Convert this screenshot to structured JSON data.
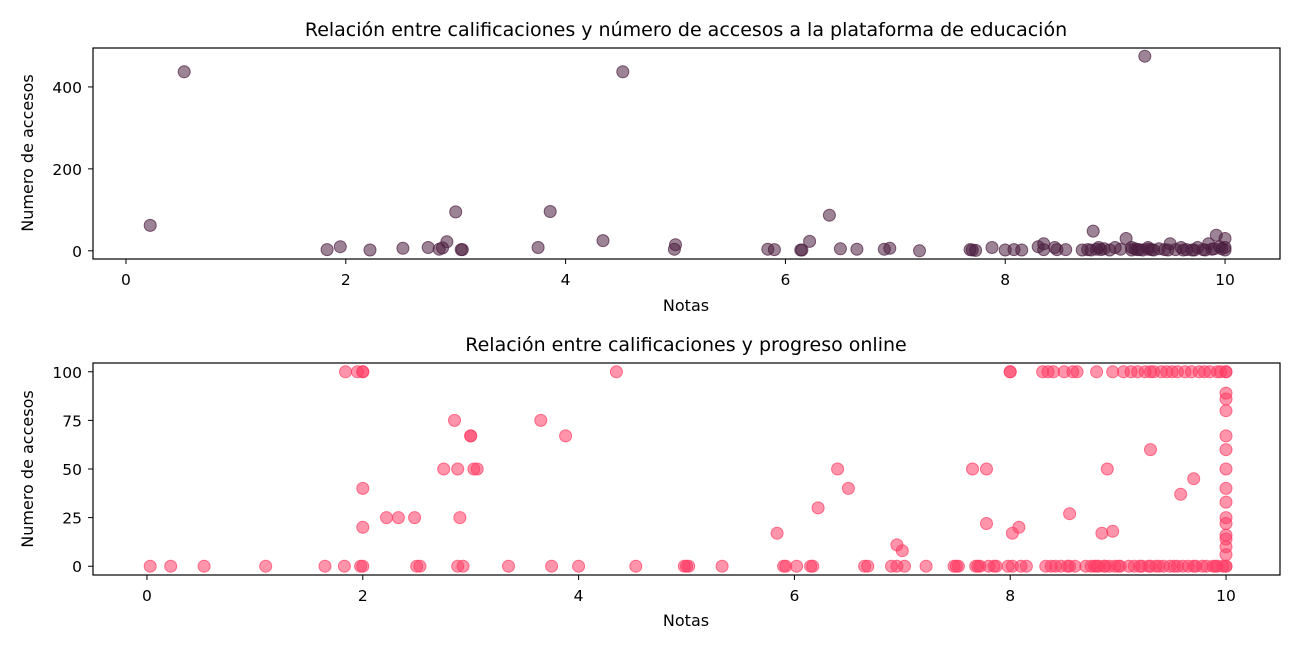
{
  "chart_data": [
    {
      "type": "scatter",
      "title": "Relación entre calificaciones y número de accesos a la plataforma de educación",
      "xlabel": "Notas",
      "ylabel": "Numero de accesos",
      "xlim": [
        -0.3,
        10.5
      ],
      "ylim": [
        -20,
        495
      ],
      "xticks": [
        0,
        2,
        4,
        6,
        8,
        10
      ],
      "yticks": [
        0,
        200,
        400
      ],
      "color": "#4b1e3f",
      "grid": false,
      "x": [
        0.22,
        0.53,
        1.83,
        1.95,
        2.22,
        2.52,
        2.75,
        2.85,
        2.88,
        2.92,
        3.0,
        3.05,
        3.06,
        3.75,
        3.86,
        4.34,
        4.52,
        4.99,
        5.0,
        5.84,
        5.9,
        6.14,
        6.15,
        6.22,
        6.4,
        6.5,
        6.65,
        6.9,
        6.95,
        7.22,
        7.68,
        7.7,
        7.73,
        7.88,
        8.0,
        8.08,
        8.15,
        8.3,
        8.35,
        8.35,
        8.45,
        8.47,
        8.55,
        8.7,
        8.75,
        8.78,
        8.8,
        8.83,
        8.85,
        8.87,
        8.9,
        8.95,
        9.0,
        9.05,
        9.1,
        9.15,
        9.15,
        9.18,
        9.2,
        9.22,
        9.25,
        9.27,
        9.3,
        9.3,
        9.33,
        9.35,
        9.4,
        9.45,
        9.48,
        9.5,
        9.55,
        9.6,
        9.62,
        9.65,
        9.7,
        9.72,
        9.75,
        9.8,
        9.82,
        9.85,
        9.88,
        9.9,
        9.92,
        9.95,
        9.97,
        10.0,
        10.0,
        10.0
      ],
      "y": [
        62,
        437,
        3,
        10,
        2,
        6,
        8,
        4,
        7,
        22,
        95,
        3,
        3,
        8,
        96,
        25,
        437,
        4,
        15,
        4,
        3,
        2,
        2,
        23,
        87,
        5,
        4,
        4,
        6,
        0,
        3,
        2,
        1,
        8,
        2,
        3,
        2,
        10,
        3,
        17,
        8,
        3,
        3,
        2,
        3,
        2,
        48,
        4,
        8,
        3,
        5,
        2,
        8,
        4,
        30,
        8,
        2,
        5,
        3,
        3,
        2,
        475,
        4,
        8,
        3,
        2,
        5,
        3,
        2,
        17,
        3,
        8,
        2,
        3,
        2,
        2,
        8,
        3,
        2,
        17,
        4,
        5,
        38,
        10,
        5,
        2,
        30,
        8
      ]
    },
    {
      "type": "scatter",
      "title": "Relación entre calificaciones y progreso online",
      "xlabel": "Notas",
      "ylabel": "Numero de accesos",
      "xlim": [
        -0.5,
        10.5
      ],
      "ylim": [
        -4.5,
        104.5
      ],
      "xticks": [
        0,
        2,
        4,
        6,
        8,
        10
      ],
      "yticks": [
        0,
        25,
        50,
        75,
        100
      ],
      "color": "#ff3d64",
      "grid": false,
      "x": [
        0.03,
        0.22,
        0.53,
        1.1,
        1.65,
        1.83,
        1.84,
        1.95,
        1.98,
        2.0,
        2.0,
        2.0,
        2.0,
        2.0,
        2.22,
        2.33,
        2.48,
        2.5,
        2.53,
        2.75,
        2.85,
        2.88,
        2.88,
        2.9,
        2.93,
        3.0,
        3.0,
        3.03,
        3.06,
        3.35,
        3.65,
        3.75,
        3.88,
        4.0,
        4.35,
        4.53,
        4.98,
        5.0,
        5.02,
        5.33,
        5.84,
        5.9,
        5.92,
        6.02,
        6.15,
        6.17,
        6.22,
        6.4,
        6.5,
        6.65,
        6.68,
        6.9,
        6.95,
        6.95,
        7.0,
        7.02,
        7.22,
        7.48,
        7.5,
        7.52,
        7.65,
        7.68,
        7.7,
        7.72,
        7.78,
        7.78,
        7.8,
        7.85,
        7.87,
        7.98,
        8.0,
        8.0,
        8.02,
        8.02,
        8.08,
        8.1,
        8.15,
        8.3,
        8.33,
        8.35,
        8.38,
        8.4,
        8.42,
        8.47,
        8.5,
        8.53,
        8.55,
        8.55,
        8.58,
        8.6,
        8.62,
        8.7,
        8.75,
        8.78,
        8.8,
        8.8,
        8.82,
        8.85,
        8.87,
        8.88,
        8.9,
        8.92,
        8.95,
        8.95,
        8.97,
        9.0,
        9.02,
        9.05,
        9.1,
        9.12,
        9.15,
        9.18,
        9.2,
        9.22,
        9.25,
        9.28,
        9.3,
        9.3,
        9.3,
        9.33,
        9.35,
        9.38,
        9.4,
        9.42,
        9.45,
        9.48,
        9.5,
        9.52,
        9.55,
        9.55,
        9.58,
        9.6,
        9.62,
        9.65,
        9.68,
        9.7,
        9.7,
        9.72,
        9.75,
        9.78,
        9.8,
        9.82,
        9.85,
        9.88,
        9.9,
        9.92,
        9.92,
        9.95,
        9.97,
        10.0,
        10.0,
        10.0,
        10.0,
        10.0,
        10.0,
        10.0,
        10.0,
        10.0,
        10.0,
        10.0,
        10.0,
        10.0,
        10.0,
        10.0,
        10.0,
        10.0,
        10.0
      ],
      "y": [
        0,
        0,
        0,
        0,
        0,
        0,
        100,
        100,
        0,
        100,
        40,
        20,
        0,
        100,
        25,
        25,
        25,
        0,
        0,
        50,
        75,
        50,
        0,
        25,
        0,
        67,
        67,
        50,
        50,
        0,
        75,
        0,
        67,
        0,
        100,
        0,
        0,
        0,
        0,
        0,
        17,
        0,
        0,
        0,
        0,
        0,
        30,
        50,
        40,
        0,
        0,
        0,
        0,
        11,
        8,
        0,
        0,
        0,
        0,
        0,
        50,
        0,
        0,
        0,
        22,
        50,
        0,
        0,
        0,
        0,
        100,
        100,
        17,
        0,
        20,
        0,
        0,
        100,
        0,
        100,
        0,
        100,
        0,
        0,
        100,
        0,
        27,
        0,
        100,
        0,
        100,
        0,
        0,
        0,
        100,
        0,
        0,
        17,
        0,
        0,
        50,
        0,
        100,
        18,
        0,
        0,
        0,
        100,
        0,
        100,
        0,
        100,
        0,
        0,
        100,
        0,
        100,
        0,
        60,
        100,
        0,
        0,
        100,
        0,
        100,
        0,
        100,
        0,
        100,
        0,
        37,
        0,
        100,
        0,
        100,
        0,
        45,
        0,
        100,
        0,
        100,
        0,
        100,
        0,
        0,
        100,
        0,
        100,
        0,
        6,
        100,
        0,
        10,
        89,
        86,
        80,
        67,
        60,
        50,
        40,
        33,
        25,
        22,
        16,
        14,
        100,
        0
      ]
    }
  ]
}
